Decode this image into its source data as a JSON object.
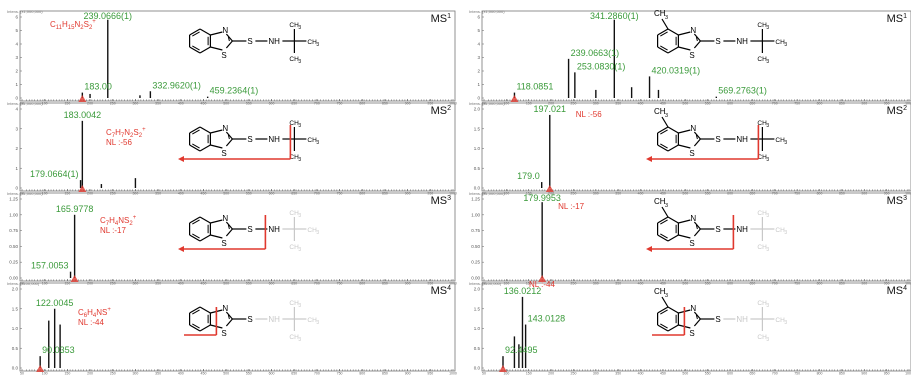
{
  "axes": {
    "intensity_label_e6": "Intens. (x1,000,000)",
    "intensity_label_e5": "Intens. (x100,000)",
    "x_ticks": [
      "50",
      "100",
      "150",
      "200",
      "250",
      "300",
      "350",
      "400",
      "450",
      "500",
      "550",
      "600",
      "650",
      "700",
      "750",
      "800",
      "850",
      "900",
      "950",
      "1000"
    ]
  },
  "colors": {
    "green": "#3a9a3a",
    "red": "#e0382e",
    "black": "#000000",
    "gray": "#c8c8c8"
  },
  "chart_data": [
    {
      "type": "bar",
      "side": "left",
      "stage": "MS",
      "stage_sup": "1",
      "intensity_label": "Intens. (x1,000,000)",
      "ylim": [
        0,
        6
      ],
      "yticks": [
        "6",
        "5",
        "4",
        "3",
        "2",
        "1",
        "0"
      ],
      "xlim": [
        50,
        1000
      ],
      "x": [
        183.0,
        200,
        239.0666,
        310,
        332.962,
        459.2364
      ],
      "y": [
        0.4,
        0.3,
        5.8,
        0.2,
        0.5,
        0.1
      ],
      "peak_labels": [
        {
          "x": 239.0666,
          "text": "239.0666(1)"
        },
        {
          "x": 183.0,
          "text": "183.00"
        },
        {
          "x": 332.962,
          "text": "332.9620(1)"
        },
        {
          "x": 459.2364,
          "text": "459.2364(1)"
        }
      ],
      "formula_main": "C",
      "formula_sub1": "11",
      "formula_mid": "H",
      "formula_sub2": "15",
      "formula_end": "N",
      "formula_sub3": "2",
      "formula_end2": "S",
      "formula_sub4": "2",
      "formula_charge": "+",
      "nl": ""
    },
    {
      "type": "bar",
      "side": "left",
      "stage": "MS",
      "stage_sup": "2",
      "intensity_label": "Intens. (x1,000,000)",
      "ylim": [
        0,
        4
      ],
      "yticks": [
        "4",
        "3",
        "2",
        "1",
        "0"
      ],
      "xlim": [
        50,
        1000
      ],
      "x": [
        183.0042,
        179.0664,
        225,
        300
      ],
      "y": [
        3.4,
        0.4,
        0.2,
        0.5
      ],
      "peak_labels": [
        {
          "x": 183.0042,
          "text": "183.0042"
        },
        {
          "x": 179.0664,
          "text": "179.0664(1)"
        }
      ],
      "formula_main": "C",
      "formula_sub1": "7",
      "formula_mid": "H",
      "formula_sub2": "7",
      "formula_end": "N",
      "formula_sub3": "2",
      "formula_end2": "S",
      "formula_sub4": "2",
      "formula_charge": "+",
      "nl": "NL :-56"
    },
    {
      "type": "bar",
      "side": "left",
      "stage": "MS",
      "stage_sup": "3",
      "intensity_label": "Intens. (x1,000,000)",
      "ylim": [
        0,
        1.25
      ],
      "yticks": [
        "1.25",
        "1.00",
        "0.75",
        "0.50",
        "0.25",
        "0.00"
      ],
      "xlim": [
        50,
        1000
      ],
      "x": [
        165.9778,
        157.0053
      ],
      "y": [
        1.0,
        0.1
      ],
      "peak_labels": [
        {
          "x": 165.9778,
          "text": "165.9778"
        },
        {
          "x": 157.0053,
          "text": "157.0053"
        }
      ],
      "formula_main": "C",
      "formula_sub1": "7",
      "formula_mid": "H",
      "formula_sub2": "4",
      "formula_end": "NS",
      "formula_sub3": "2",
      "formula_end2": "",
      "formula_sub4": "",
      "formula_charge": "+",
      "nl": "NL :-17"
    },
    {
      "type": "bar",
      "side": "left",
      "stage": "MS",
      "stage_sup": "4",
      "intensity_label": "Intens. (x100,000)",
      "ylim": [
        0,
        2.0
      ],
      "yticks": [
        "2.0",
        "1.5",
        "1.0",
        "0.5",
        "0.0"
      ],
      "xlim": [
        50,
        1000
      ],
      "x": [
        90.0353,
        109,
        122.0045,
        134
      ],
      "y": [
        0.3,
        1.2,
        1.5,
        1.1
      ],
      "peak_labels": [
        {
          "x": 122.0045,
          "text": "122.0045"
        },
        {
          "x": 90.0353,
          "text": "90.0353"
        }
      ],
      "formula_main": "C",
      "formula_sub1": "6",
      "formula_mid": "H",
      "formula_sub2": "4",
      "formula_end": "NS",
      "formula_sub3": "",
      "formula_end2": "",
      "formula_sub4": "",
      "formula_charge": "+",
      "nl": "NL :-44"
    },
    {
      "type": "bar",
      "side": "right",
      "stage": "MS",
      "stage_sup": "1",
      "intensity_label": "Intens. (x1,000,000)",
      "ylim": [
        0,
        6
      ],
      "yticks": [
        "6",
        "5",
        "4",
        "3",
        "2",
        "1",
        "0"
      ],
      "xlim": [
        50,
        1000
      ],
      "x": [
        118.0851,
        239.0663,
        253.083,
        300,
        341.286,
        380,
        420.0319,
        440,
        569.2763
      ],
      "y": [
        0.4,
        2.9,
        1.9,
        0.6,
        5.8,
        0.8,
        1.6,
        0.6,
        0.1
      ],
      "peak_labels": [
        {
          "x": 341.286,
          "text": "341.2860(1)"
        },
        {
          "x": 239.0663,
          "text": "239.0663(1)"
        },
        {
          "x": 253.083,
          "text": "253.0830(1)"
        },
        {
          "x": 420.0319,
          "text": "420.0319(1)"
        },
        {
          "x": 118.0851,
          "text": "118.0851"
        },
        {
          "x": 569.2763,
          "text": "569.2763(1)"
        }
      ],
      "nl": ""
    },
    {
      "type": "bar",
      "side": "right",
      "stage": "MS",
      "stage_sup": "2",
      "intensity_label": "Intens. (x1,000,000)",
      "ylim": [
        0,
        2.0
      ],
      "yticks": [
        "2.0",
        "1.5",
        "1.0",
        "0.5",
        "0.0"
      ],
      "xlim": [
        50,
        1000
      ],
      "x": [
        197.021,
        179.0
      ],
      "y": [
        1.85,
        0.15
      ],
      "peak_labels": [
        {
          "x": 197.021,
          "text": "197.021"
        },
        {
          "x": 179.0,
          "text": "179.0"
        }
      ],
      "nl": "NL :-56"
    },
    {
      "type": "bar",
      "side": "right",
      "stage": "MS",
      "stage_sup": "3",
      "intensity_label": "Intens. (x1,000,000)",
      "ylim": [
        0,
        1.25
      ],
      "yticks": [
        "1.25",
        "1.00",
        "0.75",
        "0.50",
        "0.25",
        "0.00"
      ],
      "xlim": [
        50,
        1000
      ],
      "x": [
        179.9953
      ],
      "y": [
        1.2
      ],
      "peak_labels": [
        {
          "x": 179.9953,
          "text": "179.9953"
        }
      ],
      "nl": "NL :-17"
    },
    {
      "type": "bar",
      "side": "right",
      "stage": "MS",
      "stage_sup": "4",
      "intensity_label": "Intens. (x100,000)",
      "ylim": [
        0,
        2.0
      ],
      "yticks": [
        "2.0",
        "1.5",
        "1.0",
        "0.5",
        "0.0"
      ],
      "xlim": [
        50,
        1000
      ],
      "x": [
        92.4495,
        118,
        128,
        136.0212,
        143.0128
      ],
      "y": [
        0.3,
        0.8,
        0.6,
        1.8,
        1.1
      ],
      "peak_labels": [
        {
          "x": 136.0212,
          "text": "136.0212"
        },
        {
          "x": 143.0128,
          "text": "143.0128"
        },
        {
          "x": 92.4495,
          "text": "92.4495"
        }
      ],
      "nl": "NL :-44"
    }
  ]
}
